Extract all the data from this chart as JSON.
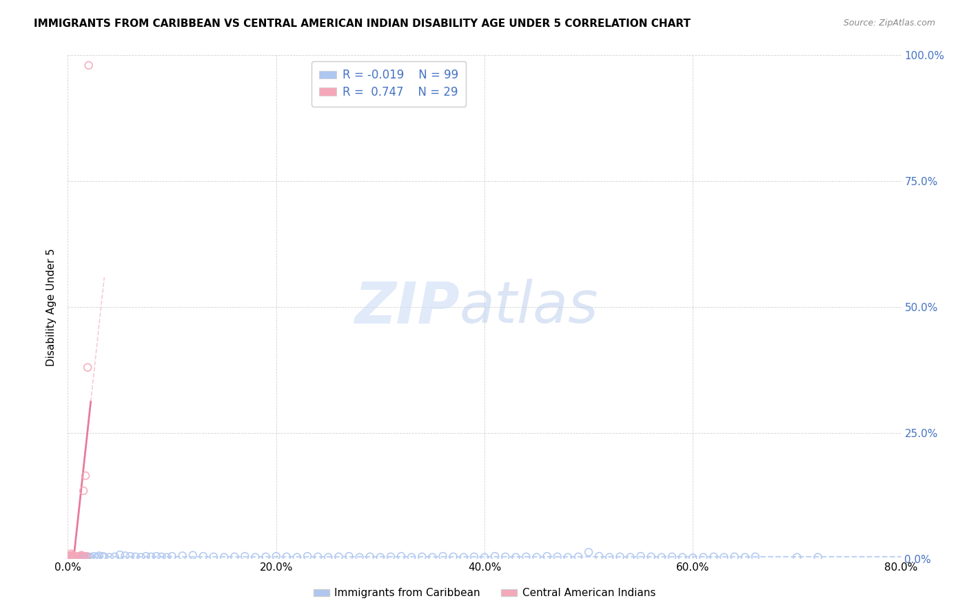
{
  "title": "IMMIGRANTS FROM CARIBBEAN VS CENTRAL AMERICAN INDIAN DISABILITY AGE UNDER 5 CORRELATION CHART",
  "source": "Source: ZipAtlas.com",
  "ylabel": "Disability Age Under 5",
  "xlim": [
    0.0,
    0.8
  ],
  "ylim": [
    0.0,
    1.0
  ],
  "xticks": [
    0.0,
    0.2,
    0.4,
    0.6,
    0.8
  ],
  "xtick_labels": [
    "0.0%",
    "20.0%",
    "40.0%",
    "60.0%",
    "80.0%"
  ],
  "yticks": [
    0.0,
    0.25,
    0.5,
    0.75,
    1.0
  ],
  "ytick_labels": [
    "0.0%",
    "25.0%",
    "50.0%",
    "75.0%",
    "100.0%"
  ],
  "legend_label1": "Immigrants from Caribbean",
  "legend_label2": "Central American Indians",
  "R1": -0.019,
  "N1": 99,
  "R2": 0.747,
  "N2": 29,
  "color1": "#aec6f0",
  "color2": "#f4a7b9",
  "tick_color": "#4472c4",
  "blue_scatter_x": [
    0.001,
    0.002,
    0.003,
    0.003,
    0.004,
    0.005,
    0.005,
    0.006,
    0.006,
    0.007,
    0.008,
    0.009,
    0.01,
    0.011,
    0.012,
    0.013,
    0.014,
    0.015,
    0.016,
    0.017,
    0.018,
    0.02,
    0.022,
    0.025,
    0.028,
    0.03,
    0.033,
    0.035,
    0.04,
    0.045,
    0.05,
    0.055,
    0.06,
    0.065,
    0.07,
    0.075,
    0.08,
    0.085,
    0.09,
    0.095,
    0.1,
    0.11,
    0.12,
    0.13,
    0.14,
    0.15,
    0.16,
    0.17,
    0.18,
    0.19,
    0.2,
    0.21,
    0.22,
    0.23,
    0.24,
    0.25,
    0.26,
    0.27,
    0.28,
    0.29,
    0.3,
    0.31,
    0.32,
    0.33,
    0.34,
    0.35,
    0.36,
    0.37,
    0.38,
    0.39,
    0.4,
    0.41,
    0.42,
    0.43,
    0.44,
    0.45,
    0.46,
    0.47,
    0.48,
    0.49,
    0.5,
    0.51,
    0.52,
    0.53,
    0.54,
    0.55,
    0.56,
    0.57,
    0.58,
    0.59,
    0.6,
    0.61,
    0.62,
    0.63,
    0.64,
    0.65,
    0.66,
    0.7,
    0.72
  ],
  "blue_scatter_y": [
    0.005,
    0.003,
    0.002,
    0.004,
    0.003,
    0.002,
    0.005,
    0.003,
    0.004,
    0.002,
    0.003,
    0.002,
    0.004,
    0.003,
    0.002,
    0.003,
    0.004,
    0.002,
    0.003,
    0.002,
    0.003,
    0.004,
    0.003,
    0.005,
    0.003,
    0.006,
    0.005,
    0.004,
    0.003,
    0.004,
    0.008,
    0.006,
    0.005,
    0.004,
    0.003,
    0.005,
    0.004,
    0.005,
    0.004,
    0.003,
    0.005,
    0.006,
    0.007,
    0.005,
    0.004,
    0.003,
    0.004,
    0.005,
    0.003,
    0.004,
    0.005,
    0.004,
    0.003,
    0.005,
    0.004,
    0.003,
    0.004,
    0.005,
    0.003,
    0.004,
    0.003,
    0.004,
    0.005,
    0.003,
    0.004,
    0.003,
    0.005,
    0.004,
    0.003,
    0.004,
    0.003,
    0.005,
    0.004,
    0.003,
    0.004,
    0.003,
    0.005,
    0.004,
    0.003,
    0.004,
    0.013,
    0.005,
    0.003,
    0.004,
    0.003,
    0.005,
    0.004,
    0.003,
    0.004,
    0.003,
    0.002,
    0.003,
    0.004,
    0.003,
    0.004,
    0.003,
    0.004,
    0.003,
    0.003
  ],
  "pink_scatter_x": [
    0.02,
    0.003,
    0.003,
    0.004,
    0.005,
    0.007,
    0.009,
    0.011,
    0.013,
    0.014,
    0.015,
    0.016,
    0.017,
    0.003,
    0.005,
    0.015,
    0.007,
    0.018,
    0.009,
    0.004,
    0.006,
    0.003,
    0.007,
    0.004,
    0.005,
    0.003,
    0.006,
    0.004,
    0.019
  ],
  "pink_scatter_y": [
    0.98,
    0.005,
    0.01,
    0.005,
    0.007,
    0.005,
    0.003,
    0.005,
    0.007,
    0.005,
    0.135,
    0.003,
    0.165,
    0.007,
    0.005,
    0.005,
    0.003,
    0.005,
    0.003,
    0.003,
    0.005,
    0.003,
    0.005,
    0.003,
    0.005,
    0.003,
    0.005,
    0.003,
    0.38
  ]
}
